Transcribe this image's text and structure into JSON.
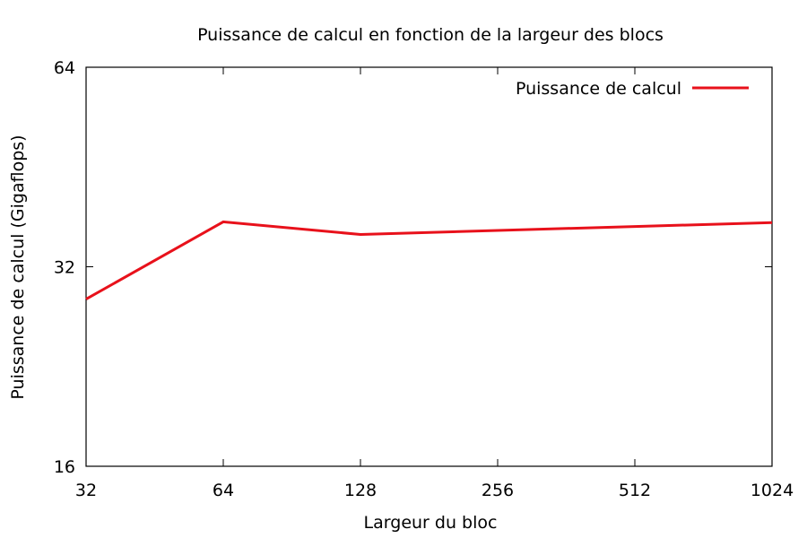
{
  "chart_data": {
    "type": "line",
    "title": "Puissance de calcul en fonction de la largeur des blocs",
    "xlabel": "Largeur du bloc",
    "ylabel": "Puissance de calcul (Gigaflops)",
    "x_scale": "log2",
    "y_scale": "log2",
    "xlim": [
      32,
      1024
    ],
    "ylim": [
      16,
      64
    ],
    "x_ticks": [
      "32",
      "64",
      "128",
      "256",
      "512",
      "1024"
    ],
    "y_ticks": [
      "16",
      "32",
      "64"
    ],
    "grid": false,
    "legend_position": "top-right",
    "series": [
      {
        "name": "Puissance de calcul",
        "color": "#e8111b",
        "x": [
          32,
          64,
          128,
          256,
          512,
          1024
        ],
        "y": [
          28.6,
          37.4,
          35.8,
          36.3,
          36.8,
          37.3
        ]
      }
    ]
  }
}
